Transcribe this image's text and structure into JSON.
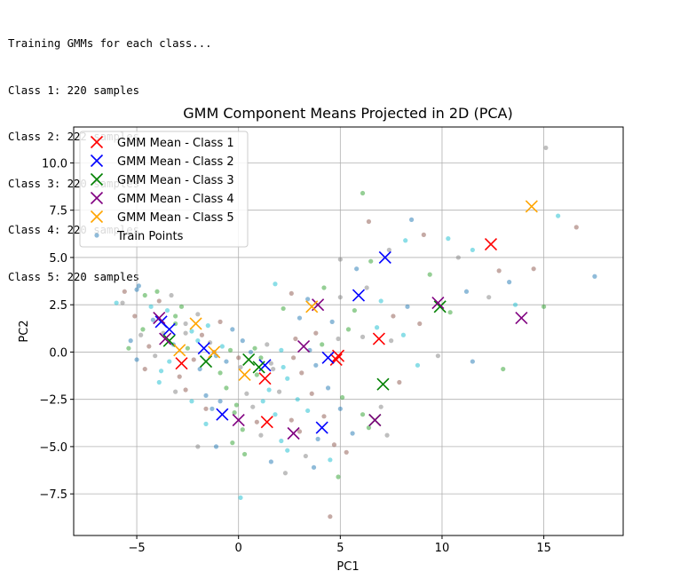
{
  "console": {
    "lines": [
      "Training GMMs for each class...",
      "Class 1: 220 samples",
      "Class 2: 222 samples",
      "Class 3: 220 samples",
      "Class 4: 220 samples",
      "Class 5: 220 samples"
    ]
  },
  "chart_data": {
    "type": "scatter",
    "title": "GMM Component Means Projected in 2D (PCA)",
    "xlabel": "PC1",
    "ylabel": "PC2",
    "xlim": [
      -8.1,
      18.9
    ],
    "ylim": [
      -9.7,
      11.9
    ],
    "xticks": [
      -5,
      0,
      5,
      10,
      15
    ],
    "yticks": [
      -7.5,
      -5.0,
      -2.5,
      0.0,
      2.5,
      5.0,
      7.5,
      10.0
    ],
    "xtick_labels": [
      "−5",
      "0",
      "5",
      "10",
      "15"
    ],
    "ytick_labels": [
      "−7.5",
      "−5.0",
      "−2.5",
      "0.0",
      "2.5",
      "5.0",
      "7.5",
      "10.0"
    ],
    "grid": true,
    "legend_position": "top-left",
    "series": [
      {
        "name": "GMM Mean - Class 1",
        "marker": "x",
        "color": "#ff0000",
        "points": [
          [
            12.4,
            5.7
          ],
          [
            6.9,
            0.7
          ],
          [
            4.9,
            -0.2
          ],
          [
            4.8,
            -0.4
          ],
          [
            1.3,
            -1.4
          ],
          [
            1.4,
            -3.7
          ],
          [
            -2.8,
            -0.6
          ]
        ]
      },
      {
        "name": "GMM Mean - Class 2",
        "marker": "x",
        "color": "#0000ff",
        "points": [
          [
            7.2,
            5.0
          ],
          [
            5.9,
            3.0
          ],
          [
            4.4,
            -0.3
          ],
          [
            4.1,
            -4.0
          ],
          [
            1.3,
            -0.7
          ],
          [
            -1.7,
            0.2
          ],
          [
            -3.4,
            1.2
          ],
          [
            -3.8,
            1.6
          ],
          [
            -0.8,
            -3.3
          ]
        ]
      },
      {
        "name": "GMM Mean - Class 3",
        "marker": "x",
        "color": "#008000",
        "points": [
          [
            9.9,
            2.4
          ],
          [
            7.1,
            -1.7
          ],
          [
            6.7,
            -3.6
          ],
          [
            1.0,
            -0.8
          ],
          [
            0.5,
            -0.4
          ],
          [
            -1.6,
            -0.5
          ],
          [
            -3.4,
            0.6
          ]
        ]
      },
      {
        "name": "GMM Mean - Class 4",
        "marker": "x",
        "color": "#800080",
        "points": [
          [
            9.8,
            2.6
          ],
          [
            13.9,
            1.8
          ],
          [
            3.9,
            2.5
          ],
          [
            3.2,
            0.3
          ],
          [
            6.7,
            -3.6
          ],
          [
            2.7,
            -4.3
          ],
          [
            0.0,
            -3.6
          ],
          [
            -3.9,
            1.8
          ],
          [
            -3.6,
            0.7
          ]
        ]
      },
      {
        "name": "GMM Mean - Class 5",
        "marker": "x",
        "color": "#ffa500",
        "points": [
          [
            14.4,
            7.7
          ],
          [
            3.6,
            2.4
          ],
          [
            -2.1,
            1.5
          ],
          [
            -2.9,
            0.1
          ],
          [
            -1.2,
            0.0
          ],
          [
            0.3,
            -1.2
          ]
        ]
      },
      {
        "name": "Train Points",
        "marker": "o",
        "colors": [
          "#1f77b4",
          "#17becf",
          "#2ca02c",
          "#8c564b",
          "#7f7f7f"
        ],
        "points": [
          [
            -5.0,
            3.3
          ],
          [
            -4.6,
            3.0
          ],
          [
            -5.7,
            2.6
          ],
          [
            -4.3,
            2.4
          ],
          [
            -3.9,
            2.7
          ],
          [
            -3.5,
            2.2
          ],
          [
            -5.1,
            1.9
          ],
          [
            -4.2,
            1.7
          ],
          [
            -3.1,
            1.9
          ],
          [
            -2.6,
            1.5
          ],
          [
            -4.7,
            1.2
          ],
          [
            -3.7,
            1.0
          ],
          [
            -2.3,
            1.1
          ],
          [
            -1.8,
            0.9
          ],
          [
            -5.3,
            0.6
          ],
          [
            -4.4,
            0.3
          ],
          [
            -3.2,
            0.4
          ],
          [
            -2.5,
            0.2
          ],
          [
            -1.4,
            0.5
          ],
          [
            -0.8,
            0.3
          ],
          [
            -4.1,
            -0.2
          ],
          [
            -3.4,
            -0.5
          ],
          [
            -2.2,
            -0.4
          ],
          [
            -1.1,
            -0.2
          ],
          [
            -0.4,
            0.1
          ],
          [
            0.2,
            0.6
          ],
          [
            0.8,
            0.2
          ],
          [
            1.4,
            0.4
          ],
          [
            2.1,
            0.1
          ],
          [
            2.7,
            -0.3
          ],
          [
            -3.8,
            -1.0
          ],
          [
            -2.9,
            -1.3
          ],
          [
            -1.9,
            -0.9
          ],
          [
            -0.9,
            -1.1
          ],
          [
            0.1,
            -0.8
          ],
          [
            0.9,
            -1.2
          ],
          [
            1.7,
            -0.9
          ],
          [
            2.4,
            -1.4
          ],
          [
            3.1,
            -1.1
          ],
          [
            3.8,
            -0.7
          ],
          [
            -2.6,
            -2.0
          ],
          [
            -1.6,
            -2.3
          ],
          [
            -0.6,
            -1.9
          ],
          [
            0.4,
            -2.2
          ],
          [
            1.2,
            -2.6
          ],
          [
            2.0,
            -2.1
          ],
          [
            2.9,
            -2.5
          ],
          [
            3.6,
            -2.2
          ],
          [
            4.4,
            -1.9
          ],
          [
            5.1,
            -2.4
          ],
          [
            -1.3,
            -3.0
          ],
          [
            -0.2,
            -3.2
          ],
          [
            0.7,
            -2.9
          ],
          [
            1.8,
            -3.3
          ],
          [
            2.6,
            -3.6
          ],
          [
            3.4,
            -3.1
          ],
          [
            4.2,
            -3.4
          ],
          [
            5.0,
            -3.0
          ],
          [
            6.1,
            -3.3
          ],
          [
            7.0,
            -2.9
          ],
          [
            0.2,
            -4.1
          ],
          [
            1.1,
            -4.4
          ],
          [
            2.1,
            -4.7
          ],
          [
            3.0,
            -4.2
          ],
          [
            3.9,
            -4.6
          ],
          [
            4.7,
            -4.9
          ],
          [
            5.6,
            -4.3
          ],
          [
            6.4,
            -4.0
          ],
          [
            7.3,
            -4.4
          ],
          [
            2.4,
            -5.2
          ],
          [
            3.3,
            -5.5
          ],
          [
            4.5,
            -5.7
          ],
          [
            5.3,
            -5.3
          ],
          [
            1.6,
            -5.8
          ],
          [
            0.3,
            -5.4
          ],
          [
            3.7,
            -6.1
          ],
          [
            4.9,
            -6.6
          ],
          [
            2.3,
            -6.4
          ],
          [
            0.1,
            -7.7
          ],
          [
            4.5,
            -8.7
          ],
          [
            1.8,
            3.6
          ],
          [
            2.6,
            3.1
          ],
          [
            3.4,
            2.8
          ],
          [
            4.2,
            3.4
          ],
          [
            5.0,
            2.9
          ],
          [
            5.7,
            2.2
          ],
          [
            6.3,
            3.4
          ],
          [
            7.0,
            2.7
          ],
          [
            7.6,
            1.9
          ],
          [
            8.3,
            2.4
          ],
          [
            8.9,
            1.5
          ],
          [
            4.6,
            1.6
          ],
          [
            5.4,
            1.2
          ],
          [
            6.1,
            0.8
          ],
          [
            6.8,
            1.3
          ],
          [
            7.5,
            0.6
          ],
          [
            8.1,
            0.9
          ],
          [
            3.8,
            1.0
          ],
          [
            3.0,
            1.8
          ],
          [
            2.2,
            2.3
          ],
          [
            5.8,
            4.4
          ],
          [
            6.5,
            4.8
          ],
          [
            7.4,
            5.4
          ],
          [
            8.2,
            5.9
          ],
          [
            9.1,
            6.2
          ],
          [
            10.3,
            6.0
          ],
          [
            6.4,
            6.9
          ],
          [
            8.5,
            7.0
          ],
          [
            6.1,
            8.4
          ],
          [
            5.0,
            4.9
          ],
          [
            9.4,
            4.1
          ],
          [
            10.8,
            5.0
          ],
          [
            11.5,
            5.4
          ],
          [
            12.8,
            4.3
          ],
          [
            13.3,
            3.7
          ],
          [
            14.5,
            4.4
          ],
          [
            11.2,
            3.2
          ],
          [
            10.4,
            2.1
          ],
          [
            12.3,
            2.9
          ],
          [
            13.6,
            2.5
          ],
          [
            15.1,
            10.8
          ],
          [
            15.7,
            7.2
          ],
          [
            16.6,
            6.6
          ],
          [
            17.5,
            4.0
          ],
          [
            15.0,
            2.4
          ],
          [
            11.5,
            -0.5
          ],
          [
            13.0,
            -0.9
          ],
          [
            9.8,
            -0.2
          ],
          [
            8.8,
            -0.7
          ],
          [
            7.9,
            -1.6
          ],
          [
            -6.0,
            2.6
          ],
          [
            -5.6,
            3.2
          ],
          [
            -4.9,
            3.5
          ],
          [
            -4.0,
            3.2
          ],
          [
            -3.3,
            3.0
          ],
          [
            -2.8,
            2.4
          ],
          [
            -2.0,
            2.0
          ],
          [
            -1.5,
            1.4
          ],
          [
            -0.9,
            1.6
          ],
          [
            -0.3,
            1.2
          ],
          [
            -4.6,
            -0.9
          ],
          [
            -5.0,
            -0.4
          ],
          [
            -5.4,
            0.2
          ],
          [
            -4.8,
            0.9
          ],
          [
            -3.9,
            -1.6
          ],
          [
            -3.1,
            -2.1
          ],
          [
            -2.3,
            -2.6
          ],
          [
            -1.6,
            -3.0
          ],
          [
            -0.9,
            -2.6
          ],
          [
            -0.1,
            -2.8
          ],
          [
            -1.1,
            -5.0
          ],
          [
            -0.3,
            -4.8
          ],
          [
            -2.0,
            -5.0
          ],
          [
            -1.6,
            -3.8
          ],
          [
            0.9,
            -3.7
          ],
          [
            1.5,
            -2.0
          ],
          [
            2.8,
            0.7
          ],
          [
            3.5,
            0.1
          ],
          [
            4.1,
            0.4
          ],
          [
            4.9,
            0.7
          ],
          [
            -3.1,
            1.5
          ],
          [
            -2.6,
            1.0
          ],
          [
            -2.0,
            0.6
          ],
          [
            -1.2,
            0.0
          ],
          [
            -0.6,
            -0.5
          ],
          [
            0.0,
            -0.3
          ],
          [
            0.6,
            0.0
          ],
          [
            1.1,
            -0.3
          ],
          [
            1.6,
            -0.6
          ],
          [
            2.2,
            -0.8
          ]
        ]
      }
    ]
  }
}
